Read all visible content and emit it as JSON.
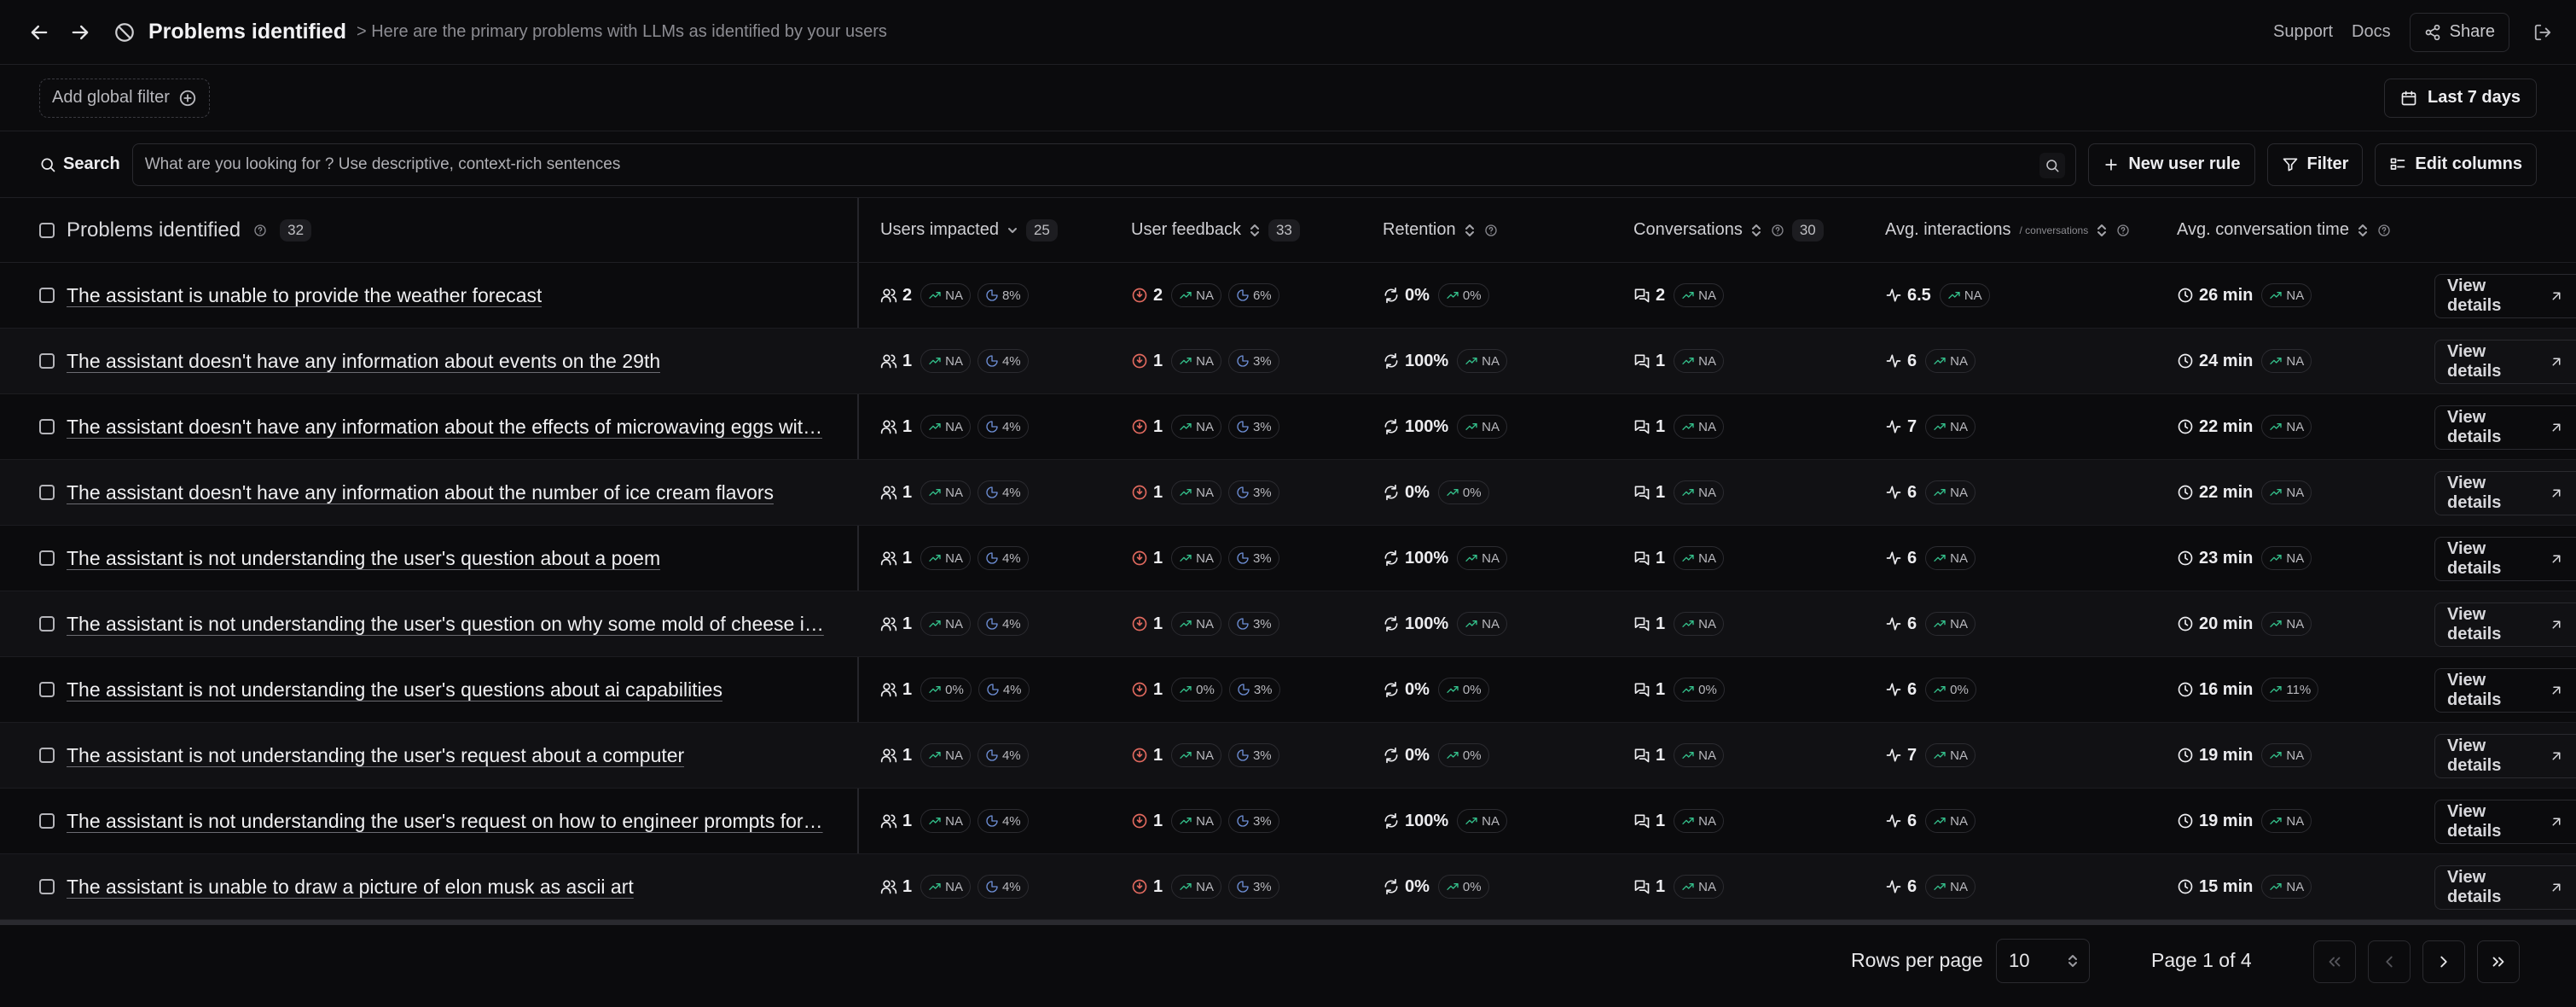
{
  "header": {
    "title": "Problems identified",
    "breadcrumb": "> Here are the primary problems with LLMs as identified by your users",
    "support": "Support",
    "docs": "Docs",
    "share": "Share"
  },
  "filters": {
    "global_filter": "Add global filter",
    "date_range": "Last 7 days"
  },
  "search": {
    "label": "Search",
    "placeholder": "What are you looking for ? Use descriptive, context-rich sentences",
    "new_rule": "New user rule",
    "filter": "Filter",
    "edit_columns": "Edit columns"
  },
  "table": {
    "title_header": "Problems identified",
    "title_count": "32",
    "columns": {
      "users": {
        "label": "Users impacted",
        "count": "25"
      },
      "feedback": {
        "label": "User feedback",
        "count": "33"
      },
      "retention": {
        "label": "Retention"
      },
      "conversations": {
        "label": "Conversations",
        "count": "30"
      },
      "interactions": {
        "label": "Avg. interactions",
        "sub": "/ conversations"
      },
      "time": {
        "label": "Avg. conversation time"
      }
    },
    "view_label": "View details",
    "rows": [
      {
        "problem": "The assistant is unable to provide the weather forecast",
        "users": "2",
        "users_trend": "NA",
        "users_pct": "8%",
        "feedback": "2",
        "feedback_trend": "NA",
        "feedback_pct": "6%",
        "retention": "0%",
        "retention_trend": "0%",
        "convs": "2",
        "convs_trend": "NA",
        "inter": "6.5",
        "inter_trend": "NA",
        "time": "26 min",
        "time_trend": "NA"
      },
      {
        "problem": "The assistant doesn't have any information about events on the 29th",
        "users": "1",
        "users_trend": "NA",
        "users_pct": "4%",
        "feedback": "1",
        "feedback_trend": "NA",
        "feedback_pct": "3%",
        "retention": "100%",
        "retention_trend": "NA",
        "convs": "1",
        "convs_trend": "NA",
        "inter": "6",
        "inter_trend": "NA",
        "time": "24 min",
        "time_trend": "NA"
      },
      {
        "problem": "The assistant doesn't have any information about the effects of microwaving eggs wit…",
        "users": "1",
        "users_trend": "NA",
        "users_pct": "4%",
        "feedback": "1",
        "feedback_trend": "NA",
        "feedback_pct": "3%",
        "retention": "100%",
        "retention_trend": "NA",
        "convs": "1",
        "convs_trend": "NA",
        "inter": "7",
        "inter_trend": "NA",
        "time": "22 min",
        "time_trend": "NA"
      },
      {
        "problem": "The assistant doesn't have any information about the number of ice cream flavors",
        "users": "1",
        "users_trend": "NA",
        "users_pct": "4%",
        "feedback": "1",
        "feedback_trend": "NA",
        "feedback_pct": "3%",
        "retention": "0%",
        "retention_trend": "0%",
        "convs": "1",
        "convs_trend": "NA",
        "inter": "6",
        "inter_trend": "NA",
        "time": "22 min",
        "time_trend": "NA"
      },
      {
        "problem": "The assistant is not understanding the user's question about a poem",
        "users": "1",
        "users_trend": "NA",
        "users_pct": "4%",
        "feedback": "1",
        "feedback_trend": "NA",
        "feedback_pct": "3%",
        "retention": "100%",
        "retention_trend": "NA",
        "convs": "1",
        "convs_trend": "NA",
        "inter": "6",
        "inter_trend": "NA",
        "time": "23 min",
        "time_trend": "NA"
      },
      {
        "problem": "The assistant is not understanding the user's question on why some mold of cheese i…",
        "users": "1",
        "users_trend": "NA",
        "users_pct": "4%",
        "feedback": "1",
        "feedback_trend": "NA",
        "feedback_pct": "3%",
        "retention": "100%",
        "retention_trend": "NA",
        "convs": "1",
        "convs_trend": "NA",
        "inter": "6",
        "inter_trend": "NA",
        "time": "20 min",
        "time_trend": "NA"
      },
      {
        "problem": "The assistant is not understanding the user's questions about ai capabilities",
        "users": "1",
        "users_trend": "0%",
        "users_pct": "4%",
        "feedback": "1",
        "feedback_trend": "0%",
        "feedback_pct": "3%",
        "retention": "0%",
        "retention_trend": "0%",
        "convs": "1",
        "convs_trend": "0%",
        "inter": "6",
        "inter_trend": "0%",
        "time": "16 min",
        "time_trend": "11%"
      },
      {
        "problem": "The assistant is not understanding the user's request about a computer",
        "users": "1",
        "users_trend": "NA",
        "users_pct": "4%",
        "feedback": "1",
        "feedback_trend": "NA",
        "feedback_pct": "3%",
        "retention": "0%",
        "retention_trend": "0%",
        "convs": "1",
        "convs_trend": "NA",
        "inter": "7",
        "inter_trend": "NA",
        "time": "19 min",
        "time_trend": "NA"
      },
      {
        "problem": "The assistant is not understanding the user's request on how to engineer prompts for…",
        "users": "1",
        "users_trend": "NA",
        "users_pct": "4%",
        "feedback": "1",
        "feedback_trend": "NA",
        "feedback_pct": "3%",
        "retention": "100%",
        "retention_trend": "NA",
        "convs": "1",
        "convs_trend": "NA",
        "inter": "6",
        "inter_trend": "NA",
        "time": "19 min",
        "time_trend": "NA"
      },
      {
        "problem": "The assistant is unable to draw a picture of elon musk as ascii art",
        "users": "1",
        "users_trend": "NA",
        "users_pct": "4%",
        "feedback": "1",
        "feedback_trend": "NA",
        "feedback_pct": "3%",
        "retention": "0%",
        "retention_trend": "0%",
        "convs": "1",
        "convs_trend": "NA",
        "inter": "6",
        "inter_trend": "NA",
        "time": "15 min",
        "time_trend": "NA"
      }
    ]
  },
  "pagination": {
    "rows_label": "Rows per page",
    "rows_value": "10",
    "page_info": "Page 1 of 4"
  },
  "colors": {
    "background": "#0b0b0d",
    "trend_green": "#34c08b",
    "feedback_red": "#e0695e",
    "percent_blue": "#6e8fd6"
  },
  "icons": [
    "back-arrow-icon",
    "forward-arrow-icon",
    "ban-icon",
    "share-icon",
    "logout-icon",
    "plus-circle-icon",
    "calendar-icon",
    "search-icon",
    "plus-icon",
    "filter-icon",
    "columns-icon",
    "users-icon",
    "thumb-down-icon",
    "refresh-icon",
    "messages-icon",
    "activity-icon",
    "clock-icon",
    "trend-up-icon",
    "pie-icon",
    "external-link-icon"
  ]
}
